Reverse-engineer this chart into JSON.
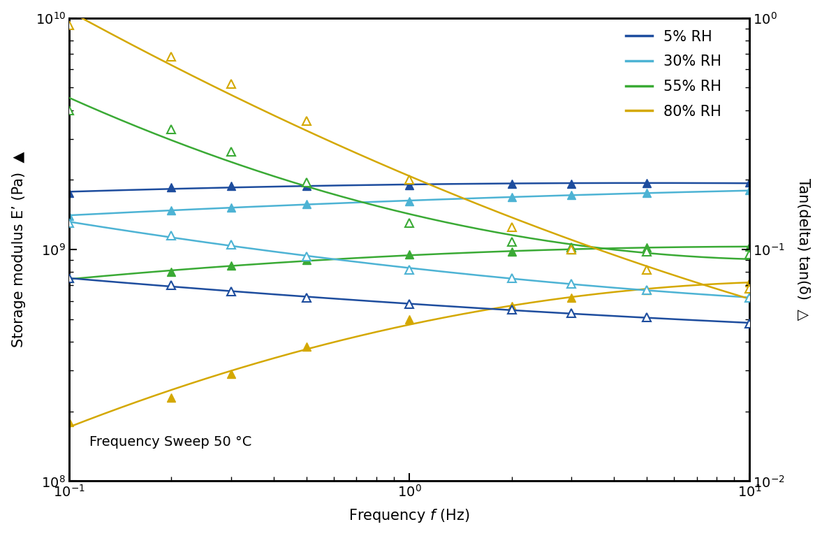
{
  "title": "Frequency Sweep 50 °C",
  "xlabel": "Frequency $f$ (Hz)",
  "ylabel_left": "Storage modulus E’ (Pa) ◄",
  "ylabel_right": "Tan(delta) tan(δ)  △",
  "xlim": [
    0.1,
    10
  ],
  "ylim_left": [
    100000000.0,
    10000000000.0
  ],
  "ylim_right": [
    0.01,
    1.0
  ],
  "conditions": [
    "5% RH",
    "30% RH",
    "55% RH",
    "80% RH"
  ],
  "colors": [
    "#1e4d9e",
    "#4db3d4",
    "#3aaa35",
    "#d4a800"
  ],
  "freq_pts": [
    0.1,
    0.2,
    0.3,
    0.5,
    1.0,
    2.0,
    3.0,
    5.0,
    10.0
  ],
  "storage_modulus": {
    "5% RH": [
      1750000000.0,
      1850000000.0,
      1880000000.0,
      1880000000.0,
      1900000000.0,
      1920000000.0,
      1920000000.0,
      1930000000.0,
      1950000000.0
    ],
    "30% RH": [
      1400000000.0,
      1480000000.0,
      1520000000.0,
      1570000000.0,
      1620000000.0,
      1680000000.0,
      1720000000.0,
      1750000000.0,
      1800000000.0
    ],
    "55% RH": [
      750000000.0,
      800000000.0,
      850000000.0,
      900000000.0,
      950000000.0,
      980000000.0,
      1000000000.0,
      1020000000.0,
      1030000000.0
    ],
    "80% RH": [
      180000000.0,
      230000000.0,
      290000000.0,
      380000000.0,
      500000000.0,
      570000000.0,
      620000000.0,
      670000000.0,
      720000000.0
    ]
  },
  "tan_delta": {
    "5% RH": [
      0.075,
      0.07,
      0.066,
      0.062,
      0.058,
      0.055,
      0.053,
      0.051,
      0.048
    ],
    "30% RH": [
      0.13,
      0.115,
      0.105,
      0.093,
      0.082,
      0.075,
      0.071,
      0.067,
      0.062
    ],
    "55% RH": [
      0.4,
      0.33,
      0.265,
      0.195,
      0.13,
      0.108,
      0.102,
      0.098,
      0.095
    ],
    "80% RH": [
      0.93,
      0.68,
      0.52,
      0.36,
      0.2,
      0.125,
      0.1,
      0.082,
      0.068
    ]
  },
  "legend_fontsize": 15,
  "tick_fontsize": 14,
  "label_fontsize": 15
}
